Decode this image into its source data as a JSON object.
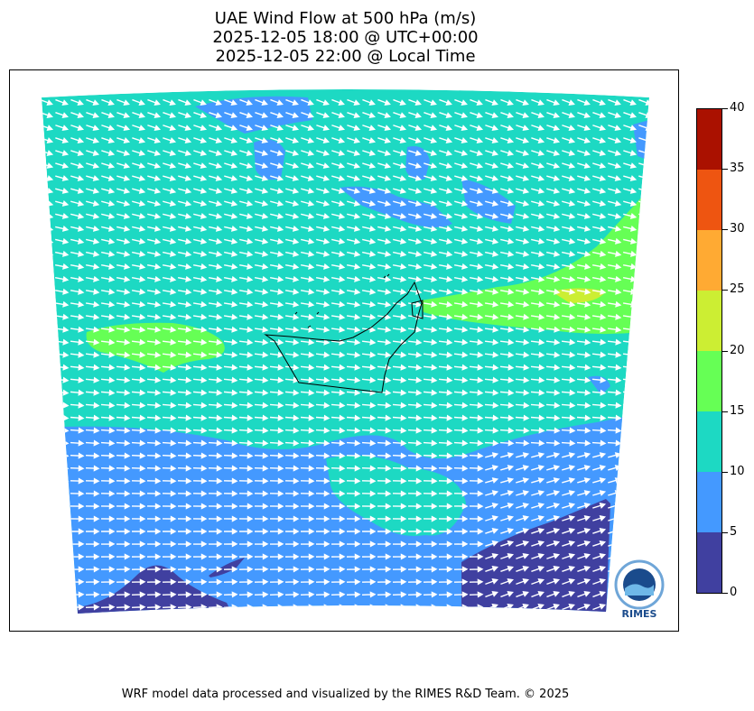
{
  "title": {
    "line1": "UAE Wind Flow at 500 hPa (m/s)",
    "line2": "2025-12-05 18:00 @ UTC+00:00",
    "line3": "2025-12-05 22:00 @ Local Time"
  },
  "colorbar": {
    "ticks": [
      "0",
      "5",
      "10",
      "15",
      "20",
      "25",
      "30",
      "35",
      "40"
    ],
    "colors": [
      "#4040a0",
      "#4499ff",
      "#1dd9c3",
      "#66ff55",
      "#ccee33",
      "#ffaa33",
      "#ee5511",
      "#aa1100"
    ]
  },
  "map": {
    "background_color": "#1dd9c3",
    "arrow_color": "#ffffff",
    "boundary_color": "#000000"
  },
  "logo": {
    "text": "RIMES"
  },
  "footer": "WRF model data processed and visualized by the RIMES R&D Team. © 2025"
}
